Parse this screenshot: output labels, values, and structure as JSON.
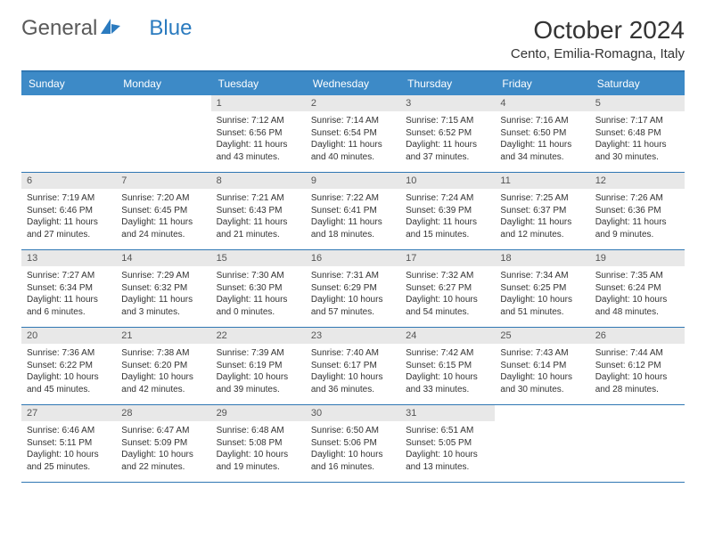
{
  "brand": {
    "part1": "General",
    "part2": "Blue"
  },
  "title": "October 2024",
  "location": "Cento, Emilia-Romagna, Italy",
  "colors": {
    "header_bg": "#3d8ac7",
    "header_text": "#ffffff",
    "rule": "#2f77b3",
    "daynum_bg": "#e8e8e8",
    "body_text": "#333333",
    "logo_blue": "#2b7bbf"
  },
  "fonts": {
    "title_size": 28,
    "location_size": 15,
    "weekday_size": 12,
    "daynum_size": 11,
    "cell_size": 10
  },
  "weekdays": [
    "Sunday",
    "Monday",
    "Tuesday",
    "Wednesday",
    "Thursday",
    "Friday",
    "Saturday"
  ],
  "layout": {
    "lead_blanks": 2,
    "trail_blanks": 2,
    "cols": 7
  },
  "days": [
    {
      "n": "1",
      "sr": "7:12 AM",
      "ss": "6:56 PM",
      "dl": "11 hours and 43 minutes."
    },
    {
      "n": "2",
      "sr": "7:14 AM",
      "ss": "6:54 PM",
      "dl": "11 hours and 40 minutes."
    },
    {
      "n": "3",
      "sr": "7:15 AM",
      "ss": "6:52 PM",
      "dl": "11 hours and 37 minutes."
    },
    {
      "n": "4",
      "sr": "7:16 AM",
      "ss": "6:50 PM",
      "dl": "11 hours and 34 minutes."
    },
    {
      "n": "5",
      "sr": "7:17 AM",
      "ss": "6:48 PM",
      "dl": "11 hours and 30 minutes."
    },
    {
      "n": "6",
      "sr": "7:19 AM",
      "ss": "6:46 PM",
      "dl": "11 hours and 27 minutes."
    },
    {
      "n": "7",
      "sr": "7:20 AM",
      "ss": "6:45 PM",
      "dl": "11 hours and 24 minutes."
    },
    {
      "n": "8",
      "sr": "7:21 AM",
      "ss": "6:43 PM",
      "dl": "11 hours and 21 minutes."
    },
    {
      "n": "9",
      "sr": "7:22 AM",
      "ss": "6:41 PM",
      "dl": "11 hours and 18 minutes."
    },
    {
      "n": "10",
      "sr": "7:24 AM",
      "ss": "6:39 PM",
      "dl": "11 hours and 15 minutes."
    },
    {
      "n": "11",
      "sr": "7:25 AM",
      "ss": "6:37 PM",
      "dl": "11 hours and 12 minutes."
    },
    {
      "n": "12",
      "sr": "7:26 AM",
      "ss": "6:36 PM",
      "dl": "11 hours and 9 minutes."
    },
    {
      "n": "13",
      "sr": "7:27 AM",
      "ss": "6:34 PM",
      "dl": "11 hours and 6 minutes."
    },
    {
      "n": "14",
      "sr": "7:29 AM",
      "ss": "6:32 PM",
      "dl": "11 hours and 3 minutes."
    },
    {
      "n": "15",
      "sr": "7:30 AM",
      "ss": "6:30 PM",
      "dl": "11 hours and 0 minutes."
    },
    {
      "n": "16",
      "sr": "7:31 AM",
      "ss": "6:29 PM",
      "dl": "10 hours and 57 minutes."
    },
    {
      "n": "17",
      "sr": "7:32 AM",
      "ss": "6:27 PM",
      "dl": "10 hours and 54 minutes."
    },
    {
      "n": "18",
      "sr": "7:34 AM",
      "ss": "6:25 PM",
      "dl": "10 hours and 51 minutes."
    },
    {
      "n": "19",
      "sr": "7:35 AM",
      "ss": "6:24 PM",
      "dl": "10 hours and 48 minutes."
    },
    {
      "n": "20",
      "sr": "7:36 AM",
      "ss": "6:22 PM",
      "dl": "10 hours and 45 minutes."
    },
    {
      "n": "21",
      "sr": "7:38 AM",
      "ss": "6:20 PM",
      "dl": "10 hours and 42 minutes."
    },
    {
      "n": "22",
      "sr": "7:39 AM",
      "ss": "6:19 PM",
      "dl": "10 hours and 39 minutes."
    },
    {
      "n": "23",
      "sr": "7:40 AM",
      "ss": "6:17 PM",
      "dl": "10 hours and 36 minutes."
    },
    {
      "n": "24",
      "sr": "7:42 AM",
      "ss": "6:15 PM",
      "dl": "10 hours and 33 minutes."
    },
    {
      "n": "25",
      "sr": "7:43 AM",
      "ss": "6:14 PM",
      "dl": "10 hours and 30 minutes."
    },
    {
      "n": "26",
      "sr": "7:44 AM",
      "ss": "6:12 PM",
      "dl": "10 hours and 28 minutes."
    },
    {
      "n": "27",
      "sr": "6:46 AM",
      "ss": "5:11 PM",
      "dl": "10 hours and 25 minutes."
    },
    {
      "n": "28",
      "sr": "6:47 AM",
      "ss": "5:09 PM",
      "dl": "10 hours and 22 minutes."
    },
    {
      "n": "29",
      "sr": "6:48 AM",
      "ss": "5:08 PM",
      "dl": "10 hours and 19 minutes."
    },
    {
      "n": "30",
      "sr": "6:50 AM",
      "ss": "5:06 PM",
      "dl": "10 hours and 16 minutes."
    },
    {
      "n": "31",
      "sr": "6:51 AM",
      "ss": "5:05 PM",
      "dl": "10 hours and 13 minutes."
    }
  ],
  "labels": {
    "sunrise": "Sunrise:",
    "sunset": "Sunset:",
    "daylight": "Daylight:"
  }
}
